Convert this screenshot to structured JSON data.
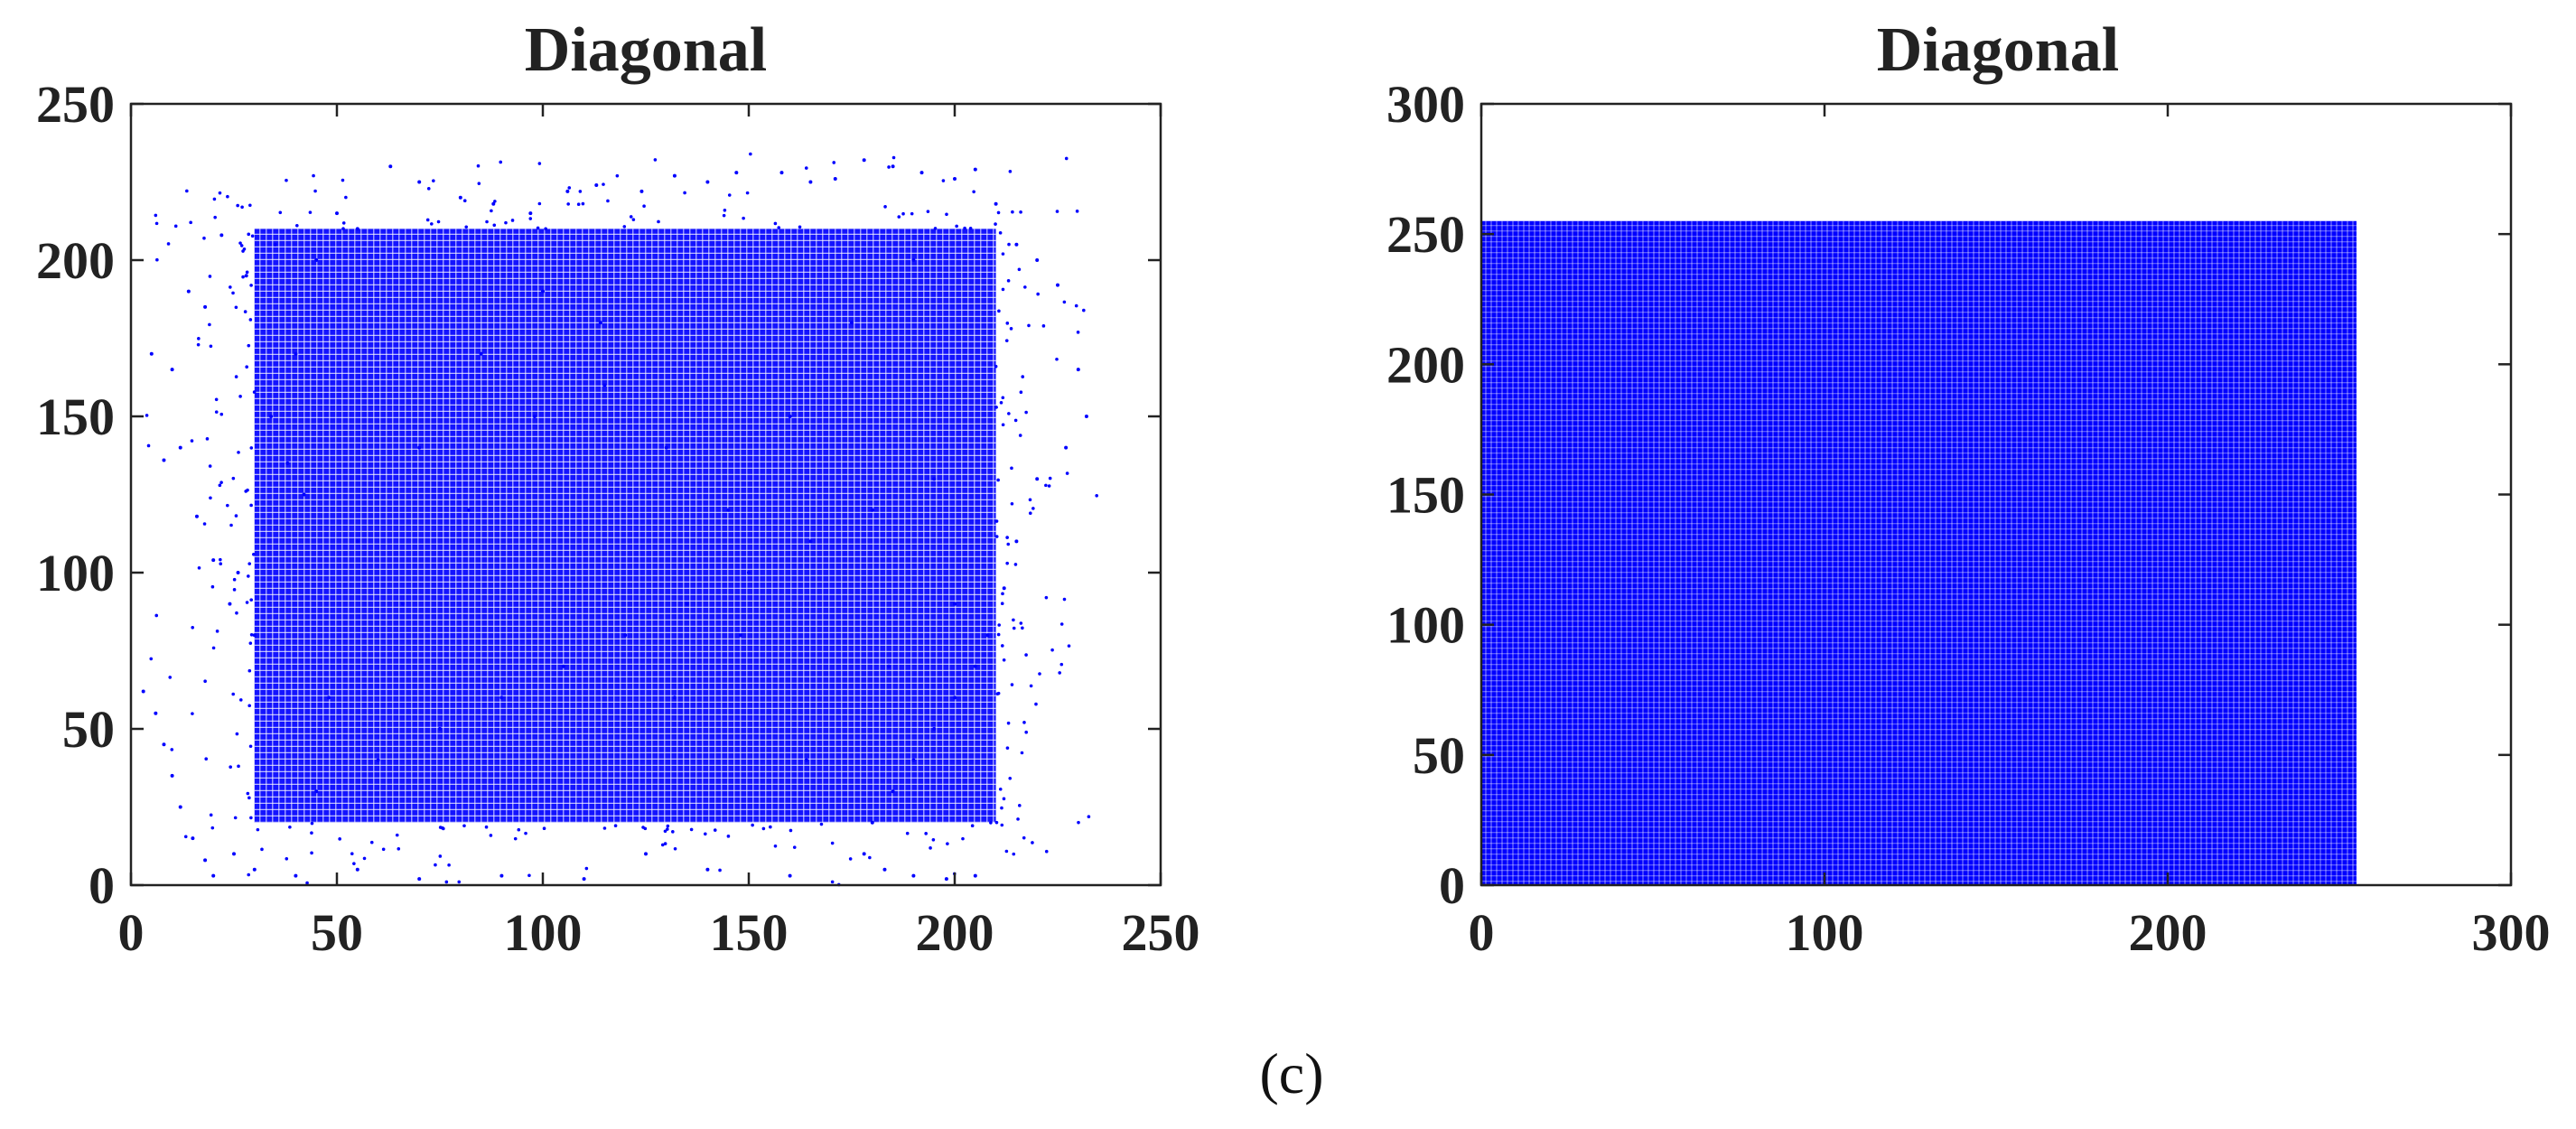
{
  "figure": {
    "caption": "(c)"
  },
  "chart_data": [
    {
      "type": "scatter",
      "title": "Diagonal",
      "xlabel": "",
      "ylabel": "",
      "xlim": [
        0,
        250
      ],
      "ylim": [
        0,
        250
      ],
      "xticks": [
        0,
        50,
        100,
        150,
        200,
        250
      ],
      "yticks": [
        0,
        50,
        100,
        150,
        200,
        250
      ],
      "grid": false,
      "marker_color": "#0000ff",
      "description": "Dense cloud of points mostly within x 30–210, y 20–210, with a sparser halo extending to x 0–235, y 0–235",
      "series": [
        {
          "color": "#0000ff",
          "points": [
            [
              5,
              170
            ],
            [
              10,
              165
            ],
            [
              14,
              190
            ],
            [
              18,
              185
            ],
            [
              22,
              208
            ],
            [
              35,
              205
            ],
            [
              28,
              195
            ],
            [
              40,
              170
            ],
            [
              45,
              200
            ],
            [
              50,
              215
            ],
            [
              55,
              210
            ],
            [
              63,
              230
            ],
            [
              70,
              225
            ],
            [
              80,
              220
            ],
            [
              88,
              218
            ],
            [
              97,
              215
            ],
            [
              106,
              222
            ],
            [
              113,
              224
            ],
            [
              124,
              222
            ],
            [
              132,
              227
            ],
            [
              140,
              225
            ],
            [
              147,
              228
            ],
            [
              158,
              228
            ],
            [
              165,
              225
            ],
            [
              171,
              226
            ],
            [
              178,
              232
            ],
            [
              185,
              230
            ],
            [
              192,
              228
            ],
            [
              200,
              226
            ],
            [
              205,
              229
            ],
            [
              210,
              218
            ],
            [
              215,
              205
            ],
            [
              220,
              200
            ],
            [
              225,
              192
            ],
            [
              230,
              165
            ],
            [
              232,
              150
            ],
            [
              227,
              140
            ],
            [
              220,
              130
            ],
            [
              215,
              110
            ],
            [
              212,
              95
            ],
            [
              208,
              80
            ],
            [
              205,
              70
            ],
            [
              200,
              60
            ],
            [
              195,
              50
            ],
            [
              190,
              40
            ],
            [
              185,
              30
            ],
            [
              180,
              20
            ],
            [
              178,
              10
            ],
            [
              183,
              5
            ],
            [
              190,
              3
            ],
            [
              198,
              2
            ],
            [
              205,
              3
            ],
            [
              3,
              62
            ],
            [
              6,
              55
            ],
            [
              8,
              45
            ],
            [
              10,
              35
            ],
            [
              12,
              25
            ],
            [
              15,
              15
            ],
            [
              18,
              8
            ],
            [
              20,
              3
            ],
            [
              25,
              10
            ],
            [
              30,
              5
            ],
            [
              40,
              3
            ],
            [
              55,
              5
            ],
            [
              70,
              2
            ],
            [
              90,
              3
            ],
            [
              110,
              2
            ],
            [
              125,
              10
            ],
            [
              140,
              5
            ],
            [
              160,
              3
            ],
            [
              8,
              136
            ],
            [
              12,
              140
            ],
            [
              16,
              118
            ],
            [
              20,
              104
            ],
            [
              24,
              90
            ],
            [
              26,
              100
            ],
            [
              30,
              80
            ],
            [
              34,
              150
            ],
            [
              38,
              135
            ],
            [
              42,
              125
            ],
            [
              45,
              30
            ],
            [
              60,
              40
            ],
            [
              75,
              50
            ],
            [
              90,
              60
            ],
            [
              105,
              70
            ],
            [
              120,
              80
            ],
            [
              135,
              90
            ],
            [
              150,
              100
            ],
            [
              165,
              110
            ],
            [
              180,
              120
            ],
            [
              195,
              130
            ],
            [
              55,
              110
            ],
            [
              70,
              140
            ],
            [
              85,
              170
            ],
            [
              100,
              190
            ],
            [
              115,
              160
            ],
            [
              130,
              140
            ],
            [
              145,
              120
            ],
            [
              160,
              150
            ],
            [
              175,
              180
            ],
            [
              190,
              200
            ],
            [
              48,
              60
            ],
            [
              66,
              90
            ],
            [
              82,
              120
            ],
            [
              98,
              150
            ],
            [
              114,
              180
            ],
            [
              132,
              60
            ],
            [
              148,
              80
            ],
            [
              164,
              40
            ],
            [
              184,
              70
            ],
            [
              200,
              90
            ]
          ]
        }
      ]
    },
    {
      "type": "scatter",
      "title": "Diagonal",
      "xlabel": "",
      "ylabel": "",
      "xlim": [
        0,
        300
      ],
      "ylim": [
        0,
        300
      ],
      "xticks": [
        0,
        100,
        200,
        300
      ],
      "yticks": [
        0,
        50,
        100,
        150,
        200,
        250,
        300
      ],
      "grid": false,
      "marker_color": "#0000ff",
      "description": "Points uniformly fill the full square x 0–255, y 0–255",
      "series": [
        {
          "color": "#0000ff",
          "fill_region": {
            "x": [
              0,
              255
            ],
            "y": [
              0,
              255
            ]
          }
        }
      ]
    }
  ]
}
